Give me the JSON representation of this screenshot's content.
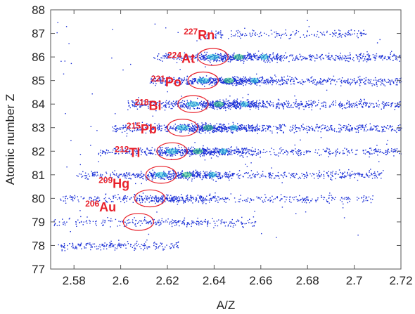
{
  "chart_data": {
    "type": "scatter",
    "title": "",
    "xlabel": "A/Z",
    "ylabel": "Atomic number  Z",
    "xlim": [
      2.57,
      2.72
    ],
    "ylim": [
      77,
      88
    ],
    "xticks": [
      2.58,
      2.6,
      2.62,
      2.64,
      2.66,
      2.68,
      2.7,
      2.72
    ],
    "yticks": [
      77,
      78,
      79,
      80,
      81,
      82,
      83,
      84,
      85,
      86,
      87,
      88
    ],
    "xtick_labels": [
      "2.58",
      "2.6",
      "2.62",
      "2.64",
      "2.66",
      "2.68",
      "2.7",
      "2.72"
    ],
    "ytick_labels": [
      "77",
      "78",
      "79",
      "80",
      "81",
      "82",
      "83",
      "84",
      "85",
      "86",
      "87",
      "88"
    ],
    "point_color": "#1a2fd6",
    "hotspot_colors": [
      "#22c4d6",
      "#2fd07a"
    ],
    "highlight_color": "#e8202a",
    "grid": false,
    "bands": [
      {
        "z": 78,
        "x_start": 2.573,
        "x_end": 2.625,
        "density": 0.22
      },
      {
        "z": 79,
        "x_start": 2.571,
        "x_end": 2.658,
        "density": 0.3
      },
      {
        "z": 80,
        "x_start": 2.573,
        "x_end": 2.708,
        "density": 0.6
      },
      {
        "z": 81,
        "x_start": 2.581,
        "x_end": 2.712,
        "density": 0.85
      },
      {
        "z": 82,
        "x_start": 2.59,
        "x_end": 2.72,
        "density": 0.9
      },
      {
        "z": 83,
        "x_start": 2.596,
        "x_end": 2.72,
        "density": 1.0
      },
      {
        "z": 84,
        "x_start": 2.603,
        "x_end": 2.72,
        "density": 1.0
      },
      {
        "z": 85,
        "x_start": 2.612,
        "x_end": 2.72,
        "density": 0.9
      },
      {
        "z": 86,
        "x_start": 2.614,
        "x_end": 2.72,
        "density": 0.8
      },
      {
        "z": 87,
        "x_start": 2.636,
        "x_end": 2.705,
        "density": 0.2
      }
    ],
    "isotopes": [
      {
        "mass": "227",
        "symbol": "Rn",
        "z": 86,
        "a_over_z": 2.6395,
        "label_at": [
          2.627,
          86.75
        ]
      },
      {
        "mass": "224",
        "symbol": "At",
        "z": 85,
        "a_over_z": 2.6353,
        "label_at": [
          2.62,
          85.75
        ]
      },
      {
        "mass": "221",
        "symbol": "Po",
        "z": 84,
        "a_over_z": 2.631,
        "label_at": [
          2.613,
          84.75
        ]
      },
      {
        "mass": "218",
        "symbol": "Bi",
        "z": 83,
        "a_over_z": 2.6265,
        "label_at": [
          2.606,
          83.75
        ]
      },
      {
        "mass": "215",
        "symbol": "Pb",
        "z": 82,
        "a_over_z": 2.622,
        "label_at": [
          2.6025,
          82.75
        ]
      },
      {
        "mass": "212",
        "symbol": "Tl",
        "z": 81,
        "a_over_z": 2.6173,
        "label_at": [
          2.5975,
          81.75
        ]
      },
      {
        "mass": "209",
        "symbol": "Hg",
        "z": 80,
        "a_over_z": 2.6125,
        "label_at": [
          2.5905,
          80.45
        ]
      },
      {
        "mass": "206",
        "symbol": "Au",
        "z": 79,
        "a_over_z": 2.6076,
        "label_at": [
          2.5848,
          79.45
        ]
      }
    ]
  }
}
